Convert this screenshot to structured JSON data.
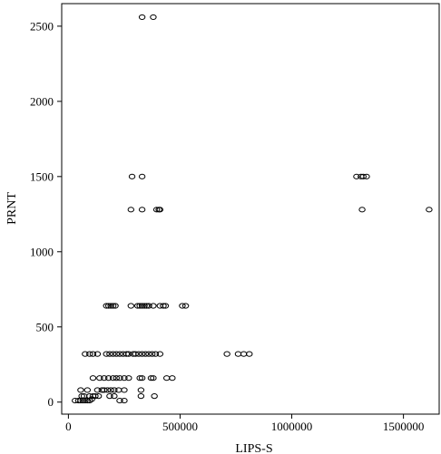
{
  "chart_data": {
    "type": "scatter",
    "title": "",
    "xlabel": "LIPS-S",
    "ylabel": "PRNT",
    "xlim": [
      -30000,
      1660000
    ],
    "ylim": [
      -80,
      2650
    ],
    "xticks": [
      0,
      500000,
      1000000,
      1500000
    ],
    "xtick_labels": [
      "0",
      "500000",
      "1000000",
      "1500000"
    ],
    "yticks": [
      0,
      500,
      1000,
      1500,
      2000,
      2500
    ],
    "ytick_labels": [
      "0",
      "500",
      "1000",
      "1500",
      "2000",
      "2500"
    ],
    "grid": false,
    "marker": "open-circle",
    "color": "#000000",
    "points": [
      [
        330000,
        2560
      ],
      [
        380000,
        2560
      ],
      [
        285000,
        1500
      ],
      [
        330000,
        1500
      ],
      [
        1290000,
        1500
      ],
      [
        1310000,
        1500
      ],
      [
        1320000,
        1500
      ],
      [
        1335000,
        1500
      ],
      [
        280000,
        1280
      ],
      [
        330000,
        1280
      ],
      [
        395000,
        1280
      ],
      [
        405000,
        1280
      ],
      [
        410000,
        1280
      ],
      [
        1315000,
        1280
      ],
      [
        1615000,
        1280
      ],
      [
        170000,
        640
      ],
      [
        180000,
        640
      ],
      [
        190000,
        640
      ],
      [
        200000,
        640
      ],
      [
        210000,
        640
      ],
      [
        280000,
        640
      ],
      [
        310000,
        640
      ],
      [
        320000,
        640
      ],
      [
        330000,
        640
      ],
      [
        340000,
        640
      ],
      [
        350000,
        640
      ],
      [
        360000,
        640
      ],
      [
        380000,
        640
      ],
      [
        410000,
        640
      ],
      [
        425000,
        640
      ],
      [
        435000,
        640
      ],
      [
        510000,
        640
      ],
      [
        525000,
        640
      ],
      [
        75000,
        320
      ],
      [
        95000,
        320
      ],
      [
        110000,
        320
      ],
      [
        130000,
        320
      ],
      [
        170000,
        320
      ],
      [
        185000,
        320
      ],
      [
        200000,
        320
      ],
      [
        215000,
        320
      ],
      [
        230000,
        320
      ],
      [
        245000,
        320
      ],
      [
        260000,
        320
      ],
      [
        270000,
        320
      ],
      [
        290000,
        320
      ],
      [
        300000,
        320
      ],
      [
        315000,
        320
      ],
      [
        330000,
        320
      ],
      [
        345000,
        320
      ],
      [
        360000,
        320
      ],
      [
        375000,
        320
      ],
      [
        390000,
        320
      ],
      [
        410000,
        320
      ],
      [
        710000,
        320
      ],
      [
        760000,
        320
      ],
      [
        785000,
        320
      ],
      [
        810000,
        320
      ],
      [
        110000,
        160
      ],
      [
        140000,
        160
      ],
      [
        160000,
        160
      ],
      [
        180000,
        160
      ],
      [
        200000,
        160
      ],
      [
        215000,
        160
      ],
      [
        230000,
        160
      ],
      [
        250000,
        160
      ],
      [
        270000,
        160
      ],
      [
        320000,
        160
      ],
      [
        330000,
        160
      ],
      [
        370000,
        160
      ],
      [
        380000,
        160
      ],
      [
        440000,
        160
      ],
      [
        465000,
        160
      ],
      [
        130000,
        80
      ],
      [
        150000,
        80
      ],
      [
        160000,
        80
      ],
      [
        175000,
        80
      ],
      [
        190000,
        80
      ],
      [
        205000,
        80
      ],
      [
        225000,
        80
      ],
      [
        250000,
        80
      ],
      [
        325000,
        80
      ],
      [
        55000,
        80
      ],
      [
        85000,
        80
      ],
      [
        60000,
        40
      ],
      [
        70000,
        40
      ],
      [
        95000,
        40
      ],
      [
        110000,
        40
      ],
      [
        120000,
        40
      ],
      [
        135000,
        40
      ],
      [
        185000,
        40
      ],
      [
        205000,
        40
      ],
      [
        325000,
        40
      ],
      [
        385000,
        40
      ],
      [
        30000,
        10
      ],
      [
        45000,
        10
      ],
      [
        55000,
        10
      ],
      [
        65000,
        10
      ],
      [
        75000,
        10
      ],
      [
        85000,
        10
      ],
      [
        95000,
        10
      ],
      [
        105000,
        20
      ],
      [
        230000,
        10
      ],
      [
        250000,
        10
      ]
    ]
  }
}
